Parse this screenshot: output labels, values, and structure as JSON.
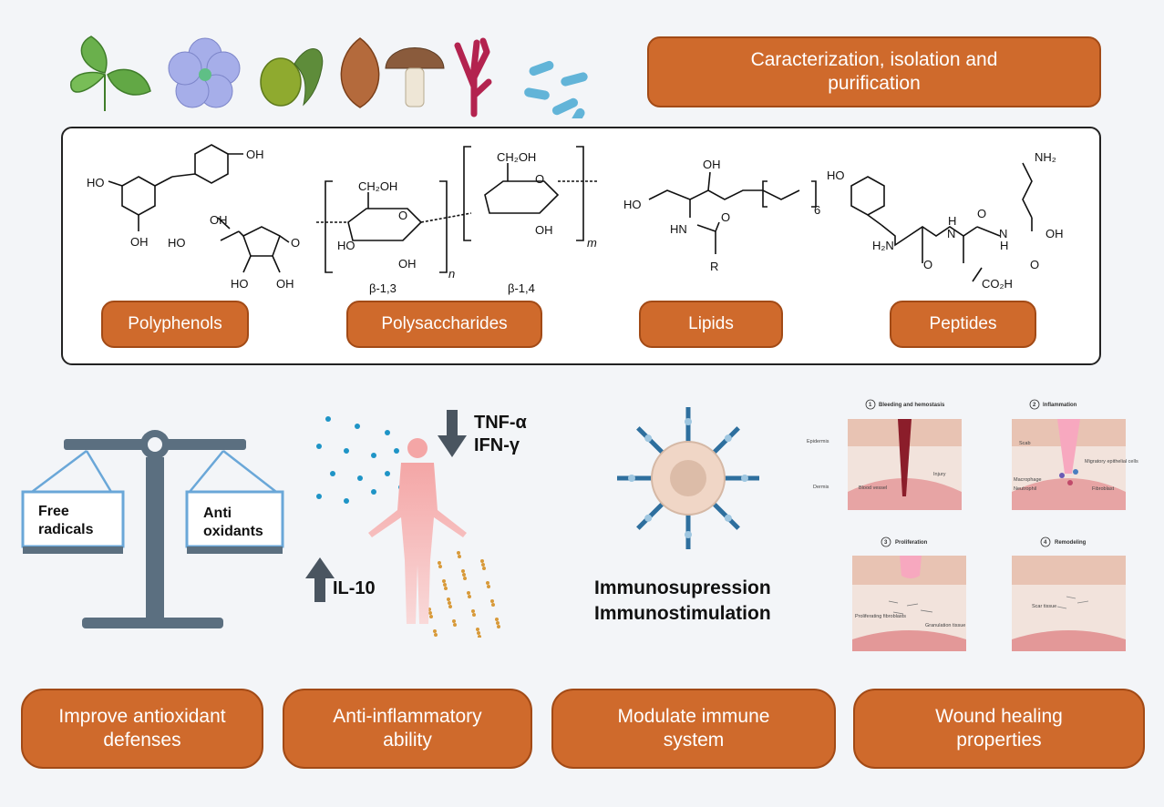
{
  "header": {
    "sources": [
      "mint-leaf-icon",
      "flower-icon",
      "olive-icon",
      "almond-icon",
      "mushroom-icon",
      "seaweed-icon",
      "bacteria-icon"
    ],
    "title_line1": "Caracterization, isolation and",
    "title_line2": "purification"
  },
  "compounds": {
    "polyphenols": "Polyphenols",
    "polysaccharides": "Polysaccharides",
    "lipids": "Lipids",
    "peptides": "Peptides"
  },
  "structures": {
    "resveratrol": {
      "oh_top": "OH",
      "ho_left": "HO",
      "oh_bottom": "OH"
    },
    "ascorbic": {
      "oh_top": "OH",
      "ho_left": "HO",
      "o_right": "O",
      "ho_bottom": "HO",
      "oh_bottom": "OH"
    },
    "polysaccharide": {
      "ch2oh": "CH₂OH",
      "ho": "HO",
      "oh1": "OH",
      "oh2": "OH",
      "o1": "O",
      "o2": "O",
      "link1": "β-1,3",
      "link2": "β-1,4",
      "n": "n",
      "m": "m"
    },
    "lipid": {
      "oh": "OH",
      "ho": "HO",
      "hn": "HN",
      "o": "O",
      "r": "R",
      "sub": "6"
    },
    "peptide": {
      "ho": "HO",
      "nh2_top": "NH₂",
      "h2n": "H₂N",
      "h1": "H",
      "n1": "N",
      "h2": "H",
      "n2": "N",
      "o1": "O",
      "o2": "O",
      "oh": "OH",
      "o3": "O",
      "co2h": "CO₂H"
    }
  },
  "balance": {
    "left_line1": "Free",
    "left_line2": "radicals",
    "right_line1": "Anti",
    "right_line2": "oxidants"
  },
  "cytokines": {
    "down_line1": "TNF-α",
    "down_line2": "IFN-γ",
    "up": "IL-10"
  },
  "immune": {
    "line1": "Immunosupression",
    "line2": "Immunostimulation"
  },
  "wound": {
    "p1": "Bleeding and hemostasis",
    "p2": "Inflammation",
    "p3": "Proliferation",
    "p4": "Remodeling",
    "n1": "1",
    "n2": "2",
    "n3": "3",
    "n4": "4",
    "epidermis": "Epidermis",
    "dermis": "Dermis",
    "blood_vessel": "Blood vessel",
    "injury": "Injury",
    "scab": "Scab",
    "migratory": "Migratory epithelial cells",
    "macrophage": "Macrophage",
    "neutrophil": "Neutrophil",
    "fibroblast": "Fibroblast",
    "prolif_fibro": "Proliferating fibroblasts",
    "granulation": "Granulation tissue",
    "scar": "Scar tissue"
  },
  "outcomes": [
    {
      "line1": "Improve antioxidant",
      "line2": "defenses"
    },
    {
      "line1": "Anti-inflammatory",
      "line2": "ability"
    },
    {
      "line1": "Modulate immune",
      "line2": "system"
    },
    {
      "line1": "Wound healing",
      "line2": "properties"
    }
  ],
  "colors": {
    "accent": "#cf6a2c",
    "accent_border": "#a24a16",
    "balance": "#5b6f80",
    "dot_blue": "#1e94c6",
    "dot_orange": "#d89a3a"
  }
}
